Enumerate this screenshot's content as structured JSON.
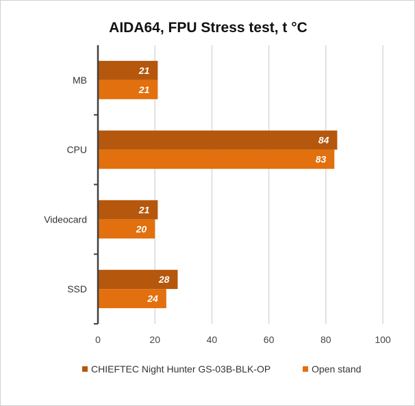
{
  "chart_data": {
    "type": "bar",
    "orientation": "horizontal",
    "title": "AIDA64, FPU Stress test, t °C",
    "categories": [
      "MB",
      "CPU",
      "Videocard",
      "SSD"
    ],
    "series": [
      {
        "name": "CHIEFTEC Night Hunter GS-03B-BLK-OP",
        "color": "#B5570C",
        "values": [
          21,
          84,
          21,
          28
        ]
      },
      {
        "name": "Open stand",
        "color": "#E2700E",
        "values": [
          21,
          83,
          20,
          24
        ]
      }
    ],
    "xlim": [
      0,
      100
    ],
    "xticks": [
      "0",
      "20",
      "40",
      "60",
      "80",
      "100"
    ],
    "grid": true,
    "legend": "bottom"
  }
}
